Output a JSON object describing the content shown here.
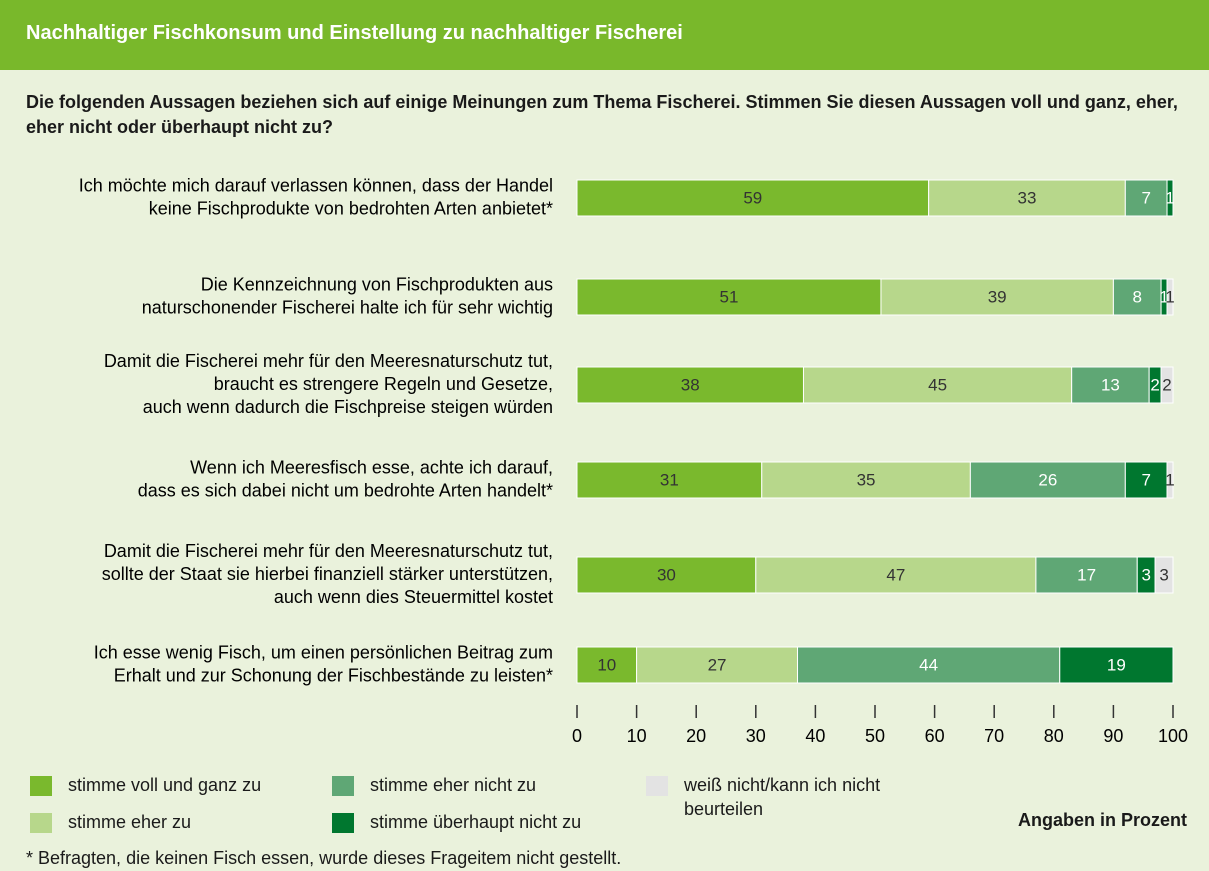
{
  "chart_data": {
    "type": "stacked-bar-horizontal",
    "title": "Nachhaltiger Fischkonsum und Einstellung zu nachhaltiger Fischerei",
    "subtitle": "Die folgenden Aussagen beziehen sich auf einige Meinungen zum Thema Fischerei. Stimmen Sie diesen Aussagen voll und ganz, eher, eher nicht oder überhaupt nicht zu?",
    "categories": [
      [
        "Ich möchte mich darauf verlassen können, dass der Handel",
        "keine Fischprodukte von bedrohten Arten anbietet*"
      ],
      [
        "Die Kennzeichnung von Fischprodukten aus",
        "naturschonender Fischerei halte ich für sehr wichtig"
      ],
      [
        "Damit die Fischerei mehr für den Meeresnaturschutz tut,",
        "braucht es strengere Regeln und Gesetze,",
        "auch wenn dadurch die Fischpreise steigen würden"
      ],
      [
        "Wenn ich Meeresfisch esse, achte ich darauf,",
        "dass es sich dabei nicht um bedrohte Arten handelt*"
      ],
      [
        "Damit die Fischerei mehr für den Meeresnaturschutz tut,",
        "sollte der Staat sie hierbei finanziell stärker unterstützen,",
        "auch wenn dies Steuermittel kostet"
      ],
      [
        "Ich esse wenig Fisch, um einen persönlichen Beitrag zum",
        "Erhalt und zur Schonung der Fischbestände zu leisten*"
      ]
    ],
    "series": [
      {
        "name": "stimme voll und ganz zu",
        "color": "#7ab92d",
        "values": [
          59,
          51,
          38,
          31,
          30,
          10
        ]
      },
      {
        "name": "stimme eher zu",
        "color": "#b7d78b",
        "values": [
          33,
          39,
          45,
          35,
          47,
          27
        ]
      },
      {
        "name": "stimme eher nicht zu",
        "color": "#5fa775",
        "values": [
          7,
          8,
          13,
          26,
          17,
          44
        ]
      },
      {
        "name": "stimme überhaupt nicht zu",
        "color": "#00772f",
        "values": [
          1,
          1,
          2,
          7,
          3,
          19
        ]
      },
      {
        "name": "weiß nicht/kann ich nicht beurteilen",
        "color": "#e3e3e3",
        "values": [
          null,
          1,
          2,
          1,
          3,
          null
        ]
      }
    ],
    "xlim": [
      0,
      100
    ],
    "xticks": [
      0,
      10,
      20,
      30,
      40,
      50,
      60,
      70,
      80,
      90,
      100
    ],
    "note": "Angaben in Prozent",
    "footnote": "* Befragten, die keinen Fisch essen, wurde dieses Frageitem nicht gestellt."
  }
}
